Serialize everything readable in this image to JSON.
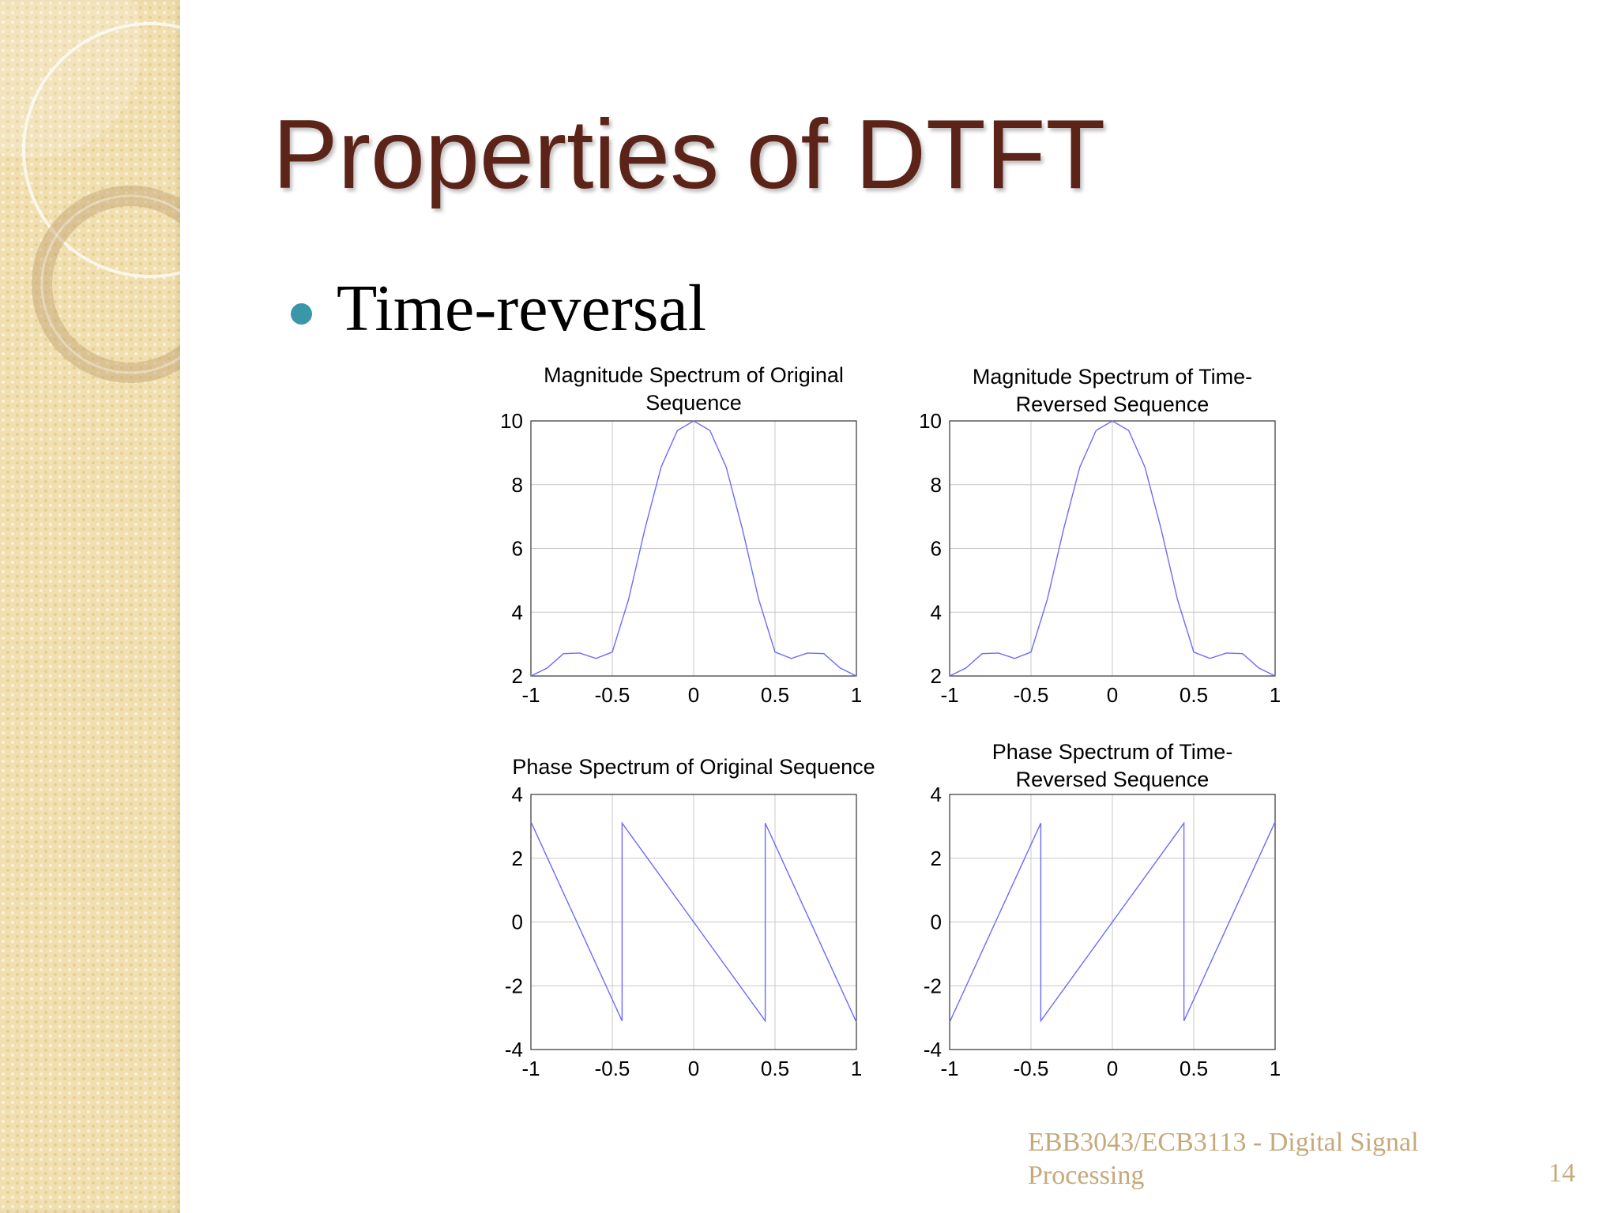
{
  "slide": {
    "title": "Properties of DTFT",
    "bullet": "Time-reversal",
    "footer": "EBB3043/ECB3113 - Digital Signal Processing",
    "page_number": "14"
  },
  "colors": {
    "title": "#5c2418",
    "bullet_dot": "#3a97aa",
    "footer": "#c6a97a",
    "plot_line": "#6b6bff",
    "grid": "#c8c8c8",
    "sidebar": "#f1dfb0"
  },
  "chart_data": [
    {
      "type": "line",
      "title_lines": [
        "Magnitude Spectrum of Original",
        "Sequence"
      ],
      "x": [
        -1,
        -0.9,
        -0.8,
        -0.7,
        -0.6,
        -0.5,
        -0.4,
        -0.3,
        -0.2,
        -0.1,
        0,
        0.1,
        0.2,
        0.3,
        0.4,
        0.5,
        0.6,
        0.7,
        0.8,
        0.9,
        1
      ],
      "y": [
        2,
        2.25,
        2.7,
        2.72,
        2.55,
        2.75,
        4.4,
        6.6,
        8.55,
        9.7,
        10,
        9.7,
        8.55,
        6.6,
        4.4,
        2.75,
        2.55,
        2.72,
        2.7,
        2.25,
        2
      ],
      "xlim": [
        -1,
        1
      ],
      "ylim": [
        2,
        10
      ],
      "xticks": [
        "-1",
        "-0.5",
        "0",
        "0.5",
        "1"
      ],
      "yticks": [
        "2",
        "4",
        "6",
        "8",
        "10"
      ],
      "grid": true
    },
    {
      "type": "line",
      "title_lines": [
        "Magnitude Spectrum of Time-",
        "Reversed Sequence"
      ],
      "x": [
        -1,
        -0.9,
        -0.8,
        -0.7,
        -0.6,
        -0.5,
        -0.4,
        -0.3,
        -0.2,
        -0.1,
        0,
        0.1,
        0.2,
        0.3,
        0.4,
        0.5,
        0.6,
        0.7,
        0.8,
        0.9,
        1
      ],
      "y": [
        2,
        2.25,
        2.7,
        2.72,
        2.55,
        2.75,
        4.4,
        6.6,
        8.55,
        9.7,
        10,
        9.7,
        8.55,
        6.6,
        4.4,
        2.75,
        2.55,
        2.72,
        2.7,
        2.25,
        2
      ],
      "xlim": [
        -1,
        1
      ],
      "ylim": [
        2,
        10
      ],
      "xticks": [
        "-1",
        "-0.5",
        "0",
        "0.5",
        "1"
      ],
      "yticks": [
        "2",
        "4",
        "6",
        "8",
        "10"
      ],
      "grid": true
    },
    {
      "type": "line",
      "title_lines": [
        "Phase Spectrum of Original Sequence"
      ],
      "x": [
        -1,
        -0.44,
        -0.44,
        0.44,
        0.44,
        1
      ],
      "y": [
        3.14,
        -3.1,
        3.1,
        -3.1,
        3.1,
        -3.14
      ],
      "xlim": [
        -1,
        1
      ],
      "ylim": [
        -4,
        4
      ],
      "xticks": [
        "-1",
        "-0.5",
        "0",
        "0.5",
        "1"
      ],
      "yticks": [
        "-4",
        "-2",
        "0",
        "2",
        "4"
      ],
      "grid": true
    },
    {
      "type": "line",
      "title_lines": [
        "Phase Spectrum of Time-",
        "Reversed Sequence"
      ],
      "x": [
        -1,
        -0.44,
        -0.44,
        0.44,
        0.44,
        1
      ],
      "y": [
        -3.14,
        3.1,
        -3.1,
        3.1,
        -3.1,
        3.14
      ],
      "xlim": [
        -1,
        1
      ],
      "ylim": [
        -4,
        4
      ],
      "xticks": [
        "-1",
        "-0.5",
        "0",
        "0.5",
        "1"
      ],
      "yticks": [
        "-4",
        "-2",
        "0",
        "2",
        "4"
      ],
      "grid": true
    }
  ]
}
